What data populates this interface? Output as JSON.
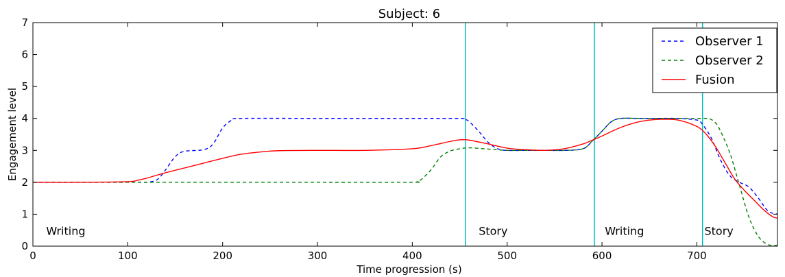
{
  "chart_data": {
    "type": "line",
    "title": "Subject: 6",
    "xlabel": "Time progression (s)",
    "ylabel": "Engagement level",
    "xlim": [
      0,
      785
    ],
    "ylim": [
      0,
      7
    ],
    "xticks": [
      0,
      100,
      200,
      300,
      400,
      500,
      600,
      700
    ],
    "yticks": [
      0,
      1,
      2,
      3,
      4,
      5,
      6,
      7
    ],
    "grid": false,
    "legend_position": "top-right",
    "series": [
      {
        "name": "Observer 1",
        "style": "dashed",
        "color": "#0000ff",
        "x": [
          0,
          100,
          125,
          135,
          150,
          160,
          180,
          190,
          200,
          210,
          220,
          300,
          400,
          450,
          455,
          460,
          470,
          480,
          490,
          500,
          520,
          540,
          560,
          580,
          590,
          600,
          610,
          620,
          640,
          660,
          680,
          700,
          705,
          715,
          725,
          735,
          745,
          755,
          765,
          775,
          785
        ],
        "y": [
          2,
          2,
          2.02,
          2.2,
          2.8,
          2.97,
          3.02,
          3.2,
          3.7,
          3.95,
          4,
          4,
          4,
          4,
          3.98,
          3.9,
          3.6,
          3.25,
          3.05,
          3.0,
          3.0,
          3.0,
          3.0,
          3.05,
          3.3,
          3.6,
          3.9,
          4,
          4,
          4,
          4,
          3.95,
          3.85,
          3.4,
          2.7,
          2.2,
          2.0,
          1.85,
          1.5,
          1.1,
          1.0
        ]
      },
      {
        "name": "Observer 2",
        "style": "dashed",
        "color": "#008000",
        "x": [
          0,
          100,
          200,
          300,
          400,
          405,
          410,
          420,
          430,
          440,
          450,
          460,
          480,
          500,
          520,
          540,
          560,
          580,
          590,
          600,
          610,
          620,
          640,
          660,
          680,
          700,
          710,
          715,
          720,
          725,
          735,
          745,
          755,
          765,
          775,
          785
        ],
        "y": [
          2,
          2,
          2,
          2,
          2,
          2.02,
          2.1,
          2.4,
          2.8,
          2.98,
          3.05,
          3.08,
          3.04,
          3.0,
          3.0,
          3.0,
          3.0,
          3.05,
          3.3,
          3.6,
          3.9,
          4,
          4,
          4,
          4,
          4,
          4,
          3.97,
          3.85,
          3.6,
          2.9,
          1.9,
          0.9,
          0.3,
          0.05,
          0.02
        ]
      },
      {
        "name": "Fusion",
        "style": "solid",
        "color": "#ff0000",
        "x": [
          0,
          50,
          100,
          110,
          120,
          140,
          160,
          180,
          200,
          220,
          240,
          260,
          300,
          350,
          400,
          420,
          440,
          450,
          460,
          480,
          500,
          520,
          540,
          560,
          580,
          590,
          600,
          620,
          640,
          660,
          680,
          700,
          710,
          720,
          730,
          740,
          750,
          760,
          770,
          780,
          785
        ],
        "y": [
          2,
          2,
          2.02,
          2.06,
          2.13,
          2.3,
          2.45,
          2.6,
          2.75,
          2.88,
          2.95,
          2.99,
          3.0,
          3.0,
          3.05,
          3.15,
          3.28,
          3.33,
          3.32,
          3.2,
          3.07,
          3.02,
          3.0,
          3.05,
          3.2,
          3.32,
          3.45,
          3.72,
          3.9,
          3.97,
          3.95,
          3.75,
          3.5,
          3.1,
          2.6,
          2.1,
          1.75,
          1.45,
          1.15,
          0.92,
          0.88
        ]
      }
    ],
    "vlines": [
      456,
      592,
      706
    ],
    "vline_color": "#00bfbf",
    "annotations": [
      {
        "text": "Writing",
        "x": 14,
        "y": 0.35
      },
      {
        "text": "Story",
        "x": 470,
        "y": 0.35
      },
      {
        "text": "Writing",
        "x": 603,
        "y": 0.35
      },
      {
        "text": "Story",
        "x": 708,
        "y": 0.35
      }
    ]
  }
}
